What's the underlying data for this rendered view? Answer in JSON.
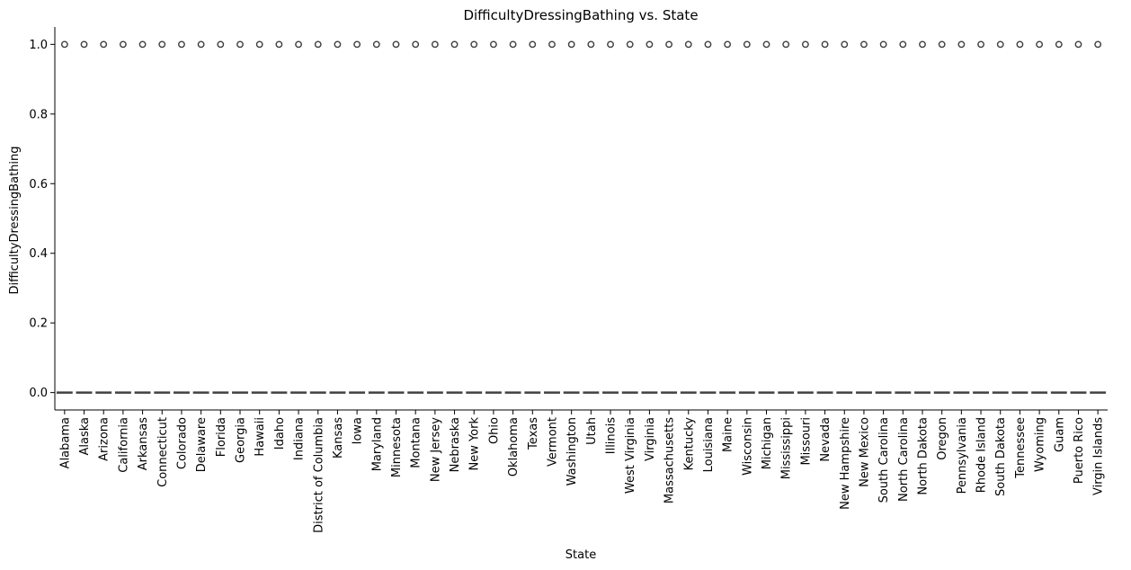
{
  "chart_data": {
    "type": "box",
    "title": "DifficultyDressingBathing vs. State",
    "xlabel": "State",
    "ylabel": "DifficultyDressingBathing",
    "categories": [
      "Alabama",
      "Alaska",
      "Arizona",
      "California",
      "Arkansas",
      "Connecticut",
      "Colorado",
      "Delaware",
      "Florida",
      "Georgia",
      "Hawaii",
      "Idaho",
      "Indiana",
      "District of Columbia",
      "Kansas",
      "Iowa",
      "Maryland",
      "Minnesota",
      "Montana",
      "New Jersey",
      "Nebraska",
      "New York",
      "Ohio",
      "Oklahoma",
      "Texas",
      "Vermont",
      "Washington",
      "Utah",
      "Illinois",
      "West Virginia",
      "Virginia",
      "Massachusetts",
      "Kentucky",
      "Louisiana",
      "Maine",
      "Wisconsin",
      "Michigan",
      "Mississippi",
      "Missouri",
      "Nevada",
      "New Hampshire",
      "New Mexico",
      "South Carolina",
      "North Carolina",
      "North Dakota",
      "Oregon",
      "Pennsylvania",
      "Rhode Island",
      "South Dakota",
      "Tennessee",
      "Wyoming",
      "Guam",
      "Puerto Rico",
      "Virgin Islands"
    ],
    "box_stats": {
      "q1": 0.0,
      "median": 0.0,
      "q3": 0.0,
      "whisker_low": 0.0,
      "whisker_high": 0.0
    },
    "outliers": [
      1.0
    ],
    "ylim": [
      -0.05,
      1.05
    ],
    "yticks": [
      0.0,
      0.2,
      0.4,
      0.6,
      0.8,
      1.0
    ],
    "ytick_labels": [
      "0.0",
      "0.2",
      "0.4",
      "0.6",
      "0.8",
      "1.0"
    ],
    "grid": false,
    "colors": {
      "box": "#444444",
      "outlier_edge": "#3d3d3d",
      "axis": "#000000"
    }
  }
}
